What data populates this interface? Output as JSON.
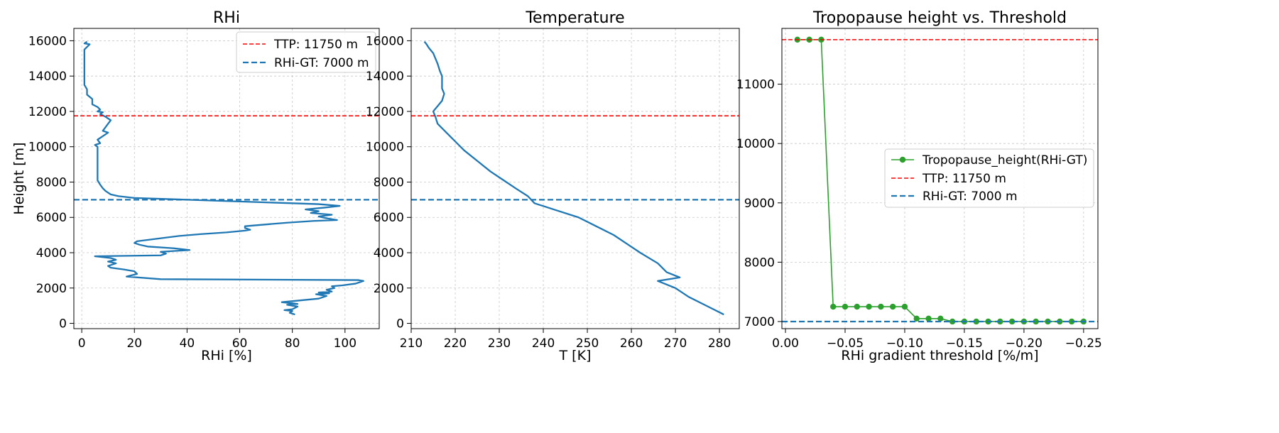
{
  "chart_data": [
    {
      "type": "line",
      "title": "RHi",
      "xlabel": "RHi [%]",
      "ylabel": "Height [m]",
      "xlim": [
        -3,
        113
      ],
      "ylim": [
        -300,
        16700
      ],
      "x_ticks": [
        0,
        20,
        40,
        60,
        80,
        100
      ],
      "y_ticks": [
        0,
        2000,
        4000,
        6000,
        8000,
        10000,
        12000,
        14000,
        16000
      ],
      "grid": true,
      "legend_position": "top-right",
      "hlines": [
        {
          "name": "TTP: 11750 m",
          "y": 11750,
          "color": "#ff0000",
          "style": "dashed"
        },
        {
          "name": "RHi-GT: 7000 m",
          "y": 7000,
          "color": "#1f77b4",
          "style": "dashed"
        }
      ],
      "series": [
        {
          "color": "#1f77b4",
          "points": [
            [
              81,
              500
            ],
            [
              79,
              600
            ],
            [
              80,
              700
            ],
            [
              77,
              750
            ],
            [
              80,
              800
            ],
            [
              82,
              950
            ],
            [
              78,
              1050
            ],
            [
              82,
              1100
            ],
            [
              76,
              1200
            ],
            [
              83,
              1300
            ],
            [
              90,
              1400
            ],
            [
              93,
              1550
            ],
            [
              89,
              1650
            ],
            [
              94,
              1700
            ],
            [
              90,
              1750
            ],
            [
              95,
              1800
            ],
            [
              93,
              1900
            ],
            [
              96,
              2000
            ],
            [
              95,
              2100
            ],
            [
              99,
              2150
            ],
            [
              104,
              2250
            ],
            [
              107,
              2400
            ],
            [
              105,
              2450
            ],
            [
              30,
              2500
            ],
            [
              17,
              2650
            ],
            [
              21,
              2800
            ],
            [
              20,
              2950
            ],
            [
              16,
              3050
            ],
            [
              11,
              3150
            ],
            [
              10,
              3250
            ],
            [
              13,
              3400
            ],
            [
              10,
              3500
            ],
            [
              13,
              3600
            ],
            [
              11,
              3700
            ],
            [
              5,
              3800
            ],
            [
              30,
              3850
            ],
            [
              32,
              3950
            ],
            [
              30,
              4050
            ],
            [
              41,
              4150
            ],
            [
              35,
              4250
            ],
            [
              25,
              4350
            ],
            [
              22,
              4450
            ],
            [
              20,
              4550
            ],
            [
              21,
              4650
            ],
            [
              29,
              4800
            ],
            [
              37,
              4950
            ],
            [
              45,
              5050
            ],
            [
              55,
              5150
            ],
            [
              62,
              5250
            ],
            [
              64,
              5300
            ],
            [
              62,
              5400
            ],
            [
              62,
              5500
            ],
            [
              70,
              5600
            ],
            [
              78,
              5700
            ],
            [
              88,
              5800
            ],
            [
              97,
              5850
            ],
            [
              93,
              5950
            ],
            [
              90,
              6050
            ],
            [
              95,
              6150
            ],
            [
              87,
              6250
            ],
            [
              90,
              6350
            ],
            [
              85,
              6450
            ],
            [
              92,
              6550
            ],
            [
              98,
              6650
            ],
            [
              90,
              6750
            ],
            [
              60,
              6900
            ],
            [
              40,
              7000
            ],
            [
              20,
              7100
            ],
            [
              14,
              7200
            ],
            [
              11,
              7300
            ],
            [
              10,
              7400
            ],
            [
              9,
              7500
            ],
            [
              8,
              7650
            ],
            [
              7,
              7850
            ],
            [
              6,
              8100
            ],
            [
              6,
              8500
            ],
            [
              6,
              9000
            ],
            [
              6,
              9500
            ],
            [
              6,
              10000
            ],
            [
              5,
              10100
            ],
            [
              7,
              10200
            ],
            [
              6,
              10400
            ],
            [
              8,
              10600
            ],
            [
              10,
              10800
            ],
            [
              8,
              10900
            ],
            [
              9,
              11100
            ],
            [
              10,
              11300
            ],
            [
              11,
              11500
            ],
            [
              9,
              11700
            ],
            [
              7,
              11850
            ],
            [
              8,
              11950
            ],
            [
              6,
              12000
            ],
            [
              7,
              12100
            ],
            [
              6,
              12250
            ],
            [
              4,
              12400
            ],
            [
              4,
              12700
            ],
            [
              2,
              12950
            ],
            [
              2,
              13250
            ],
            [
              1,
              13500
            ],
            [
              1,
              14000
            ],
            [
              1,
              14500
            ],
            [
              1,
              15000
            ],
            [
              1,
              15500
            ],
            [
              3,
              15800
            ],
            [
              1,
              15850
            ],
            [
              2,
              15950
            ]
          ]
        }
      ]
    },
    {
      "type": "line",
      "title": "Temperature",
      "xlabel": "T [K]",
      "ylabel": "",
      "xlim": [
        210,
        284.5
      ],
      "ylim": [
        -300,
        16700
      ],
      "x_ticks": [
        210,
        220,
        230,
        240,
        250,
        260,
        270,
        280
      ],
      "y_ticks": [
        0,
        2000,
        4000,
        6000,
        8000,
        10000,
        12000,
        14000,
        16000
      ],
      "grid": true,
      "hlines": [
        {
          "name": "TTP: 11750 m",
          "y": 11750,
          "color": "#ff0000",
          "style": "dashed"
        },
        {
          "name": "RHi-GT: 7000 m",
          "y": 7000,
          "color": "#1f77b4",
          "style": "dashed"
        }
      ],
      "series": [
        {
          "color": "#1f77b4",
          "points": [
            [
              281,
              500
            ],
            [
              277,
              1000
            ],
            [
              273,
              1500
            ],
            [
              270,
              2000
            ],
            [
              266,
              2400
            ],
            [
              271,
              2600
            ],
            [
              268,
              2900
            ],
            [
              266,
              3400
            ],
            [
              262,
              4000
            ],
            [
              259,
              4500
            ],
            [
              256,
              5000
            ],
            [
              252,
              5500
            ],
            [
              248,
              6000
            ],
            [
              243,
              6400
            ],
            [
              238,
              6800
            ],
            [
              236.5,
              7200
            ],
            [
              234,
              7600
            ],
            [
              231,
              8100
            ],
            [
              228,
              8600
            ],
            [
              225,
              9200
            ],
            [
              222,
              9800
            ],
            [
              220,
              10300
            ],
            [
              218,
              10800
            ],
            [
              216,
              11300
            ],
            [
              215.5,
              11700
            ],
            [
              215,
              12000
            ],
            [
              216,
              12300
            ],
            [
              217,
              12600
            ],
            [
              217.5,
              13000
            ],
            [
              217,
              13300
            ],
            [
              217,
              13700
            ],
            [
              217,
              14000
            ],
            [
              216.5,
              14300
            ],
            [
              216,
              14700
            ],
            [
              215.5,
              15000
            ],
            [
              215,
              15300
            ],
            [
              214,
              15600
            ],
            [
              213.5,
              15800
            ],
            [
              213,
              15950
            ]
          ]
        }
      ]
    },
    {
      "type": "line",
      "title": "Tropopause height vs. Threshold",
      "xlabel": "RHi gradient threshold [%/m]",
      "ylabel": "",
      "xlim": [
        0.003,
        -0.262
      ],
      "ylim": [
        6880,
        11940
      ],
      "x_ticks": [
        0.0,
        -0.05,
        -0.1,
        -0.15,
        -0.2,
        -0.25
      ],
      "x_tick_labels": [
        "0.00",
        "−0.05",
        "−0.10",
        "−0.15",
        "−0.20",
        "−0.25"
      ],
      "y_ticks": [
        7000,
        8000,
        9000,
        10000,
        11000
      ],
      "grid": true,
      "legend_position": "center-right",
      "hlines": [
        {
          "name": "TTP: 11750 m",
          "y": 11750,
          "color": "#ff0000",
          "style": "dashed"
        },
        {
          "name": "RHi-GT: 7000 m",
          "y": 7000,
          "color": "#1f77b4",
          "style": "dashed"
        }
      ],
      "series": [
        {
          "name": "Tropopause_height(RHi-GT)",
          "color": "#2ca02c",
          "marker": "circle",
          "x": [
            -0.01,
            -0.02,
            -0.03,
            -0.04,
            -0.05,
            -0.06,
            -0.07,
            -0.08,
            -0.09,
            -0.1,
            -0.11,
            -0.12,
            -0.13,
            -0.14,
            -0.15,
            -0.16,
            -0.17,
            -0.18,
            -0.19,
            -0.2,
            -0.21,
            -0.22,
            -0.23,
            -0.24,
            -0.25
          ],
          "y": [
            11750,
            11750,
            11750,
            7250,
            7250,
            7250,
            7250,
            7250,
            7250,
            7250,
            7050,
            7050,
            7050,
            7000,
            7000,
            7000,
            7000,
            7000,
            7000,
            7000,
            7000,
            7000,
            7000,
            7000,
            7000
          ]
        }
      ]
    }
  ]
}
